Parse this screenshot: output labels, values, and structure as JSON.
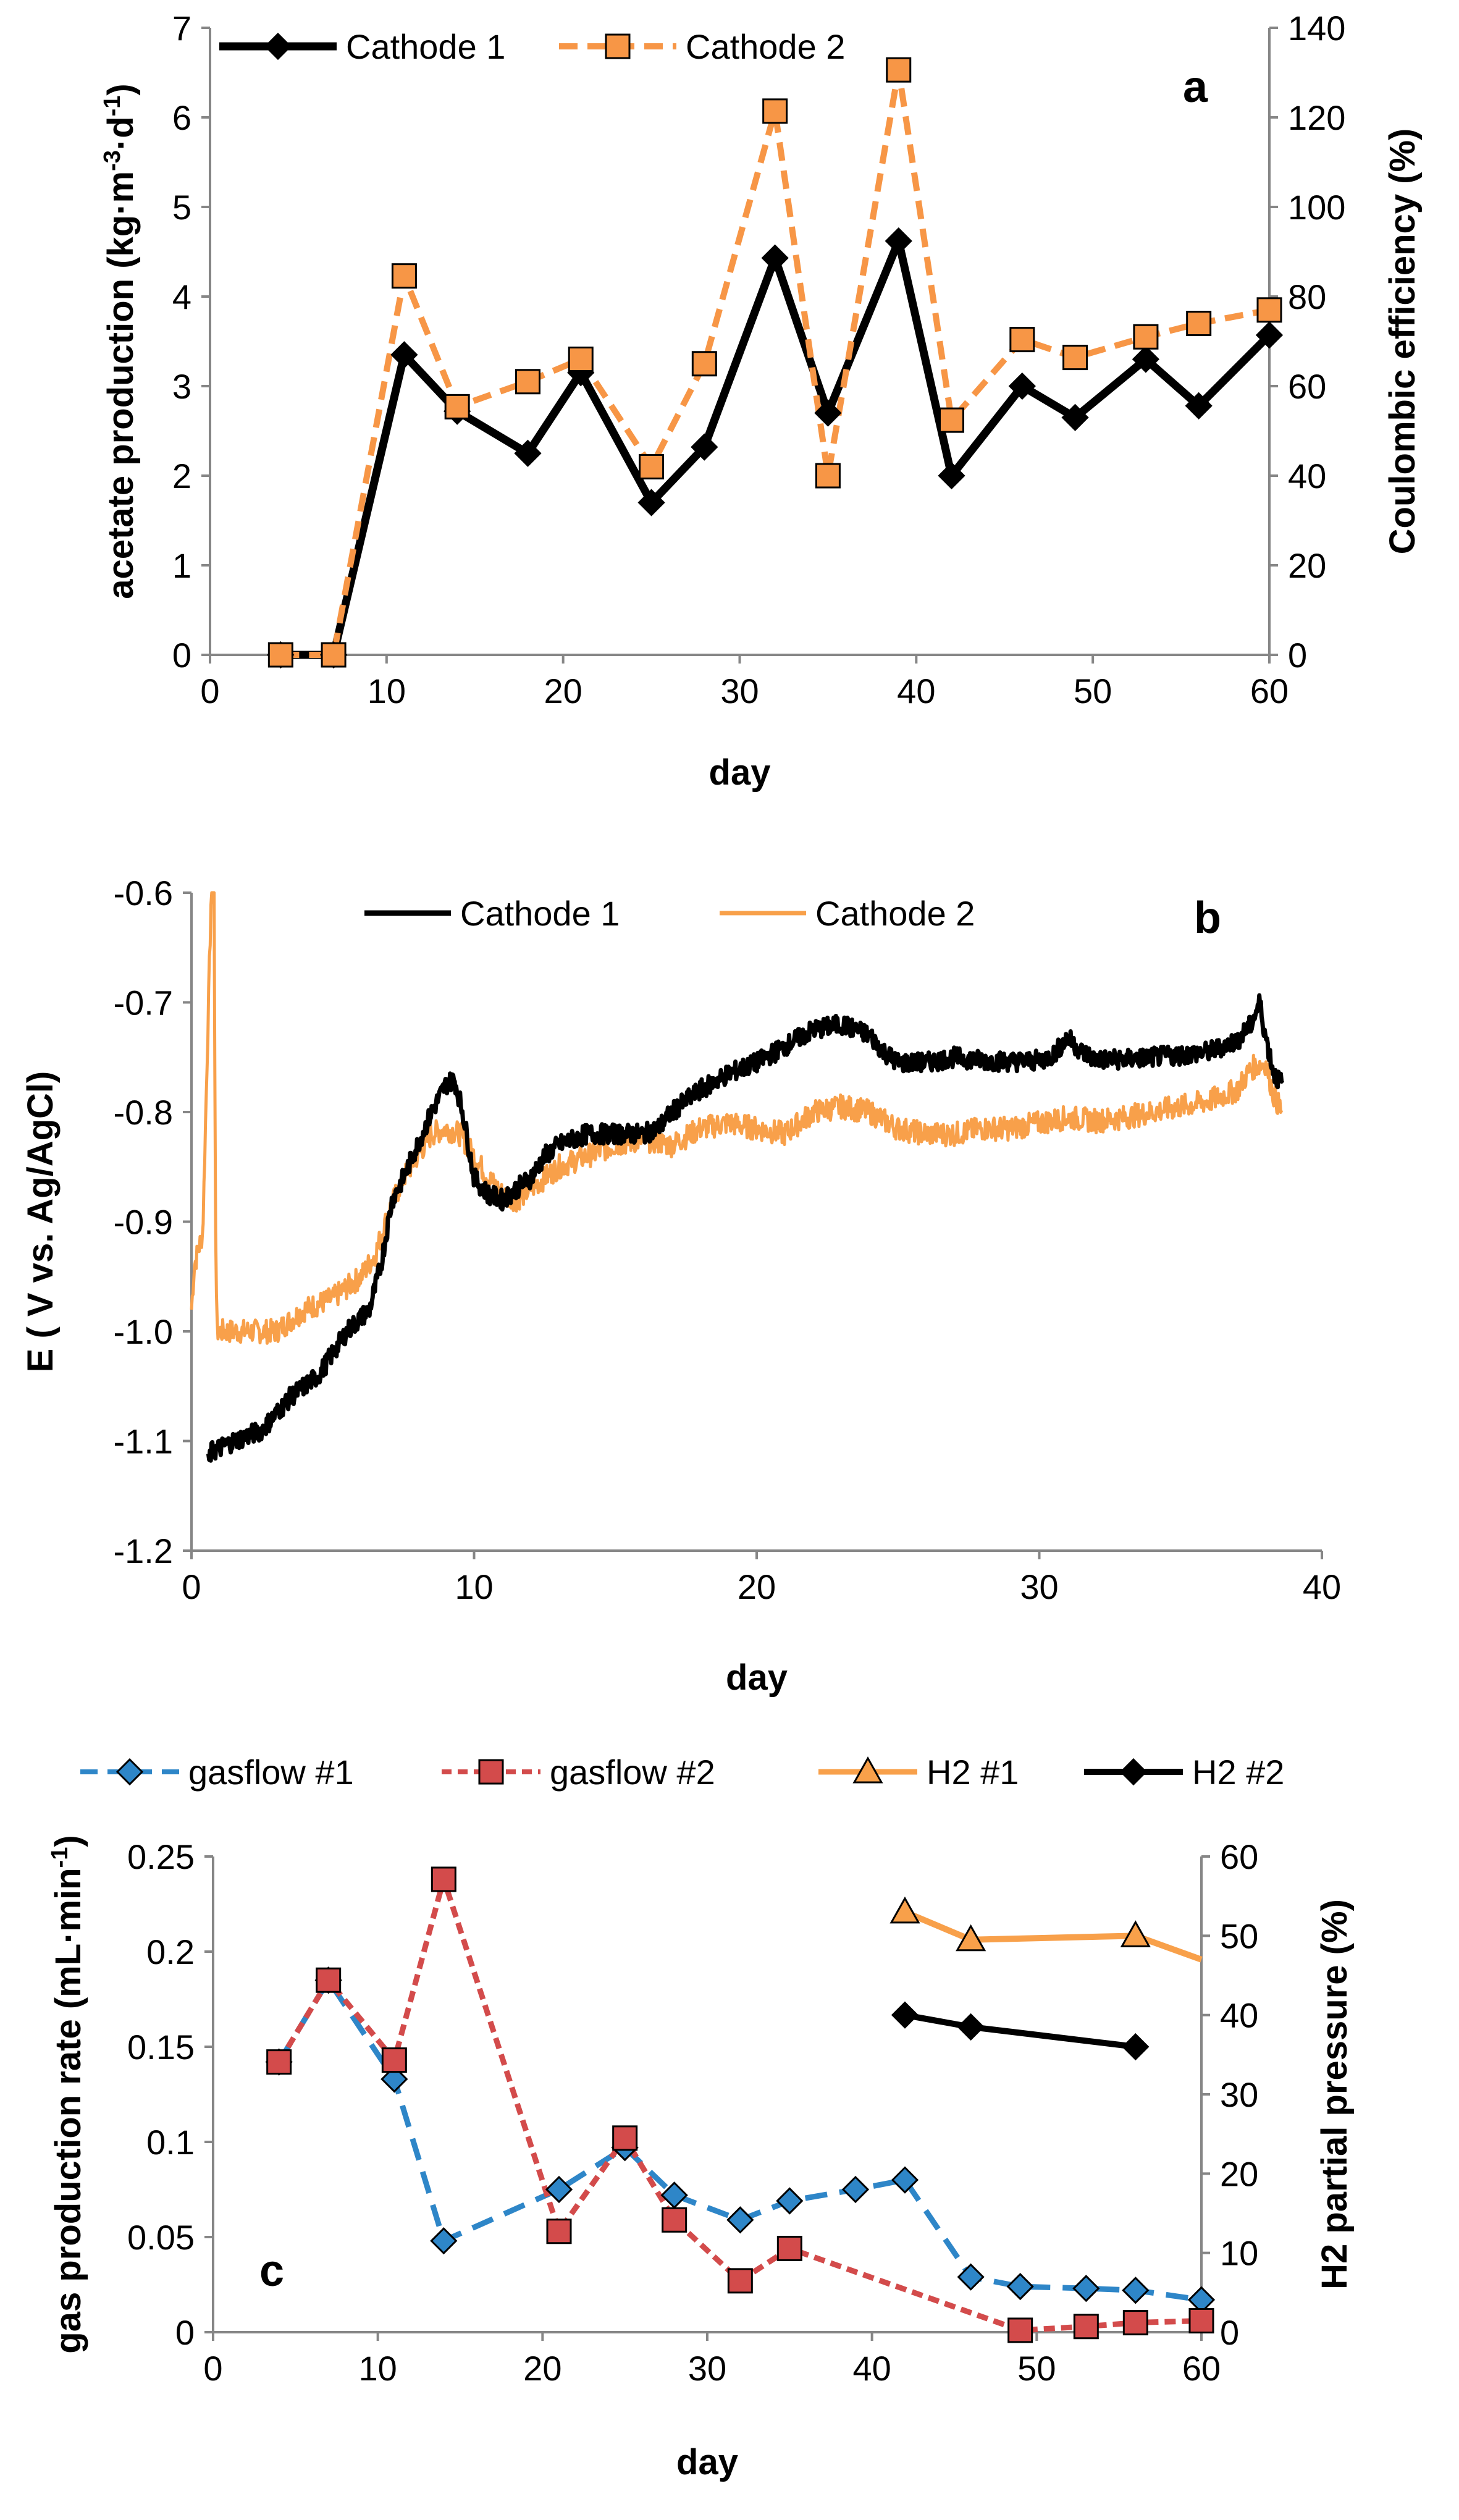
{
  "chart_data": [
    {
      "id": "a",
      "type": "line",
      "panel_label": "a",
      "xlabel": "day",
      "ylabel": "acetate production (kg·m⁻³·d⁻¹)",
      "ylabel_parts": [
        "acetate production (kg·m",
        "-3",
        "·d",
        "-1",
        ")"
      ],
      "y2label": "Coulombic efficiency (%)",
      "xlim": [
        0,
        60
      ],
      "ylim": [
        0,
        7
      ],
      "y2lim": [
        0,
        140
      ],
      "xticks": [
        0,
        10,
        20,
        30,
        40,
        50,
        60
      ],
      "yticks": [
        0,
        1,
        2,
        3,
        4,
        5,
        6,
        7
      ],
      "y2ticks": [
        0,
        20,
        40,
        60,
        80,
        100,
        120,
        140
      ],
      "legend_position": "top-left",
      "series": [
        {
          "name": "Cathode 1",
          "color": "#000000",
          "style": "solid",
          "marker": "diamond",
          "x": [
            4,
            7,
            11,
            14,
            18,
            21,
            25,
            28,
            32,
            35,
            39,
            42,
            46,
            49,
            53,
            56,
            60
          ],
          "y": [
            0,
            0,
            3.35,
            2.72,
            2.25,
            3.15,
            1.7,
            2.32,
            4.43,
            2.7,
            4.62,
            2.0,
            3.0,
            2.65,
            3.3,
            2.78,
            3.57
          ]
        },
        {
          "name": "Cathode 2",
          "color": "#F79646",
          "style": "dashed",
          "marker": "square",
          "x": [
            4,
            7,
            11,
            14,
            18,
            21,
            25,
            28,
            32,
            35,
            39,
            42,
            46,
            49,
            53,
            56,
            60
          ],
          "y": [
            0,
            0,
            4.23,
            2.77,
            3.05,
            3.3,
            2.1,
            3.25,
            6.07,
            2.0,
            6.53,
            2.62,
            3.52,
            3.32,
            3.55,
            3.7,
            3.85
          ]
        }
      ]
    },
    {
      "id": "b",
      "type": "line",
      "panel_label": "b",
      "xlabel": "day",
      "ylabel": "E ( V vs. Ag/AgCl)",
      "xlim": [
        0,
        40
      ],
      "ylim": [
        -1.2,
        -0.6
      ],
      "xticks": [
        0,
        10,
        20,
        30,
        40
      ],
      "yticks": [
        -0.6,
        -0.7,
        -0.8,
        -0.9,
        -1.0,
        -1.1,
        -1.2
      ],
      "ytick_labels": [
        "-0.6",
        "-0.7",
        "-0.8",
        "-0.9",
        "-1.0",
        "-1.1",
        "-1.2"
      ],
      "legend_position": "top",
      "series": [
        {
          "name": "Cathode 1",
          "color": "#000000",
          "noise": 0.009,
          "x": [
            0.6,
            0.7,
            1.5,
            2.5,
            3.5,
            4.5,
            5.5,
            6.3,
            6.7,
            7.1,
            7.5,
            8.0,
            8.5,
            9.0,
            9.3,
            9.6,
            10.0,
            10.5,
            11.0,
            11.5,
            12.0,
            12.5,
            13.0,
            13.5,
            14.0,
            15.0,
            16.0,
            16.5,
            17.0,
            18.0,
            19.0,
            20.0,
            21.0,
            22.0,
            23.0,
            24.0,
            24.5,
            25.0,
            26.0,
            27.0,
            28.0,
            29.0,
            30.0,
            30.5,
            31.0,
            31.5,
            32.0,
            33.0,
            34.0,
            35.0,
            36.0,
            37.0,
            37.5,
            37.8,
            38.0,
            38.3,
            38.6
          ],
          "y": [
            -1.12,
            -1.11,
            -1.1,
            -1.09,
            -1.06,
            -1.04,
            -1.0,
            -0.98,
            -0.94,
            -0.88,
            -0.86,
            -0.83,
            -0.8,
            -0.775,
            -0.77,
            -0.8,
            -0.86,
            -0.875,
            -0.88,
            -0.87,
            -0.86,
            -0.84,
            -0.83,
            -0.825,
            -0.82,
            -0.82,
            -0.82,
            -0.815,
            -0.8,
            -0.78,
            -0.765,
            -0.755,
            -0.74,
            -0.725,
            -0.72,
            -0.73,
            -0.745,
            -0.755,
            -0.755,
            -0.75,
            -0.753,
            -0.754,
            -0.753,
            -0.748,
            -0.732,
            -0.745,
            -0.752,
            -0.752,
            -0.75,
            -0.748,
            -0.745,
            -0.735,
            -0.72,
            -0.7,
            -0.73,
            -0.765,
            -0.775
          ]
        },
        {
          "name": "Cathode 2",
          "color": "#F8A04A",
          "noise": 0.011,
          "x": [
            0.0,
            0.1,
            0.2,
            0.4,
            0.7,
            0.72,
            0.75,
            0.8,
            0.85,
            0.9,
            1.0,
            2.0,
            3.0,
            4.0,
            5.0,
            6.0,
            6.5,
            7.0,
            7.5,
            8.0,
            8.5,
            9.0,
            9.5,
            10.0,
            10.5,
            11.0,
            11.5,
            12.0,
            13.0,
            14.0,
            15.0,
            16.0,
            17.0,
            18.0,
            19.0,
            20.0,
            21.0,
            22.0,
            23.0,
            24.0,
            25.0,
            26.0,
            27.0,
            28.0,
            29.0,
            30.0,
            31.0,
            32.0,
            33.0,
            34.0,
            35.0,
            36.0,
            37.0,
            37.5,
            38.0,
            38.3,
            38.6
          ],
          "y": [
            -0.98,
            -0.94,
            -0.93,
            -0.91,
            -0.6,
            -0.6,
            -0.6,
            -0.6,
            -0.9,
            -1.0,
            -1.0,
            -1.0,
            -1.0,
            -0.98,
            -0.97,
            -0.95,
            -0.93,
            -0.89,
            -0.86,
            -0.84,
            -0.82,
            -0.815,
            -0.82,
            -0.84,
            -0.86,
            -0.875,
            -0.88,
            -0.87,
            -0.85,
            -0.84,
            -0.83,
            -0.825,
            -0.83,
            -0.815,
            -0.81,
            -0.815,
            -0.82,
            -0.8,
            -0.795,
            -0.8,
            -0.815,
            -0.82,
            -0.82,
            -0.815,
            -0.815,
            -0.81,
            -0.805,
            -0.808,
            -0.805,
            -0.8,
            -0.795,
            -0.79,
            -0.78,
            -0.76,
            -0.755,
            -0.785,
            -0.8
          ]
        }
      ]
    },
    {
      "id": "c",
      "type": "line",
      "panel_label": "c",
      "xlabel": "day",
      "ylabel": "gas production rate (mL·min⁻¹)",
      "ylabel_parts": [
        "gas production rate (mL·min",
        "-1",
        ")"
      ],
      "y2label": "H2 partial pressure (%)",
      "xlim": [
        0,
        60
      ],
      "ylim": [
        0,
        0.25
      ],
      "y2lim": [
        0,
        60
      ],
      "xticks": [
        0,
        10,
        20,
        30,
        40,
        50,
        60
      ],
      "yticks": [
        0,
        0.05,
        0.1,
        0.15,
        0.2,
        0.25
      ],
      "ytick_labels": [
        "0",
        "0.05",
        "0.1",
        "0.15",
        "0.2",
        "0.25"
      ],
      "y2ticks": [
        0,
        10,
        20,
        30,
        40,
        50,
        60
      ],
      "legend_position": "top",
      "series": [
        {
          "name": "gasflow #1",
          "color": "#2E86C8",
          "style": "dashed",
          "marker": "diamond",
          "axis": "left",
          "x": [
            4,
            7,
            11,
            14,
            21,
            25,
            28,
            32,
            35,
            39,
            42,
            46,
            49,
            53,
            56,
            60
          ],
          "y": [
            0.142,
            0.185,
            0.133,
            0.048,
            0.075,
            0.097,
            0.072,
            0.059,
            0.069,
            0.075,
            0.08,
            0.029,
            0.024,
            0.023,
            0.022,
            0.017
          ]
        },
        {
          "name": "gasflow #2",
          "color": "#D34B4B",
          "style": "dashed",
          "marker": "square",
          "axis": "left",
          "x": [
            4,
            7,
            11,
            14,
            21,
            25,
            28,
            32,
            35,
            49,
            53,
            56,
            60
          ],
          "y": [
            0.142,
            0.185,
            0.143,
            0.238,
            0.053,
            0.102,
            0.059,
            0.027,
            0.044,
            0.001,
            0.003,
            0.005,
            0.006
          ]
        },
        {
          "name": "H2 #1",
          "color": "#F8A04A",
          "style": "solid",
          "marker": "triangle",
          "axis": "right",
          "x": [
            42,
            46,
            56,
            60
          ],
          "y": [
            53,
            49.5,
            50,
            47
          ]
        },
        {
          "name": "H2 #2",
          "color": "#000000",
          "style": "solid",
          "marker": "diamond",
          "axis": "right",
          "x": [
            42,
            46,
            56
          ],
          "y": [
            40,
            38.5,
            36
          ]
        }
      ]
    }
  ]
}
